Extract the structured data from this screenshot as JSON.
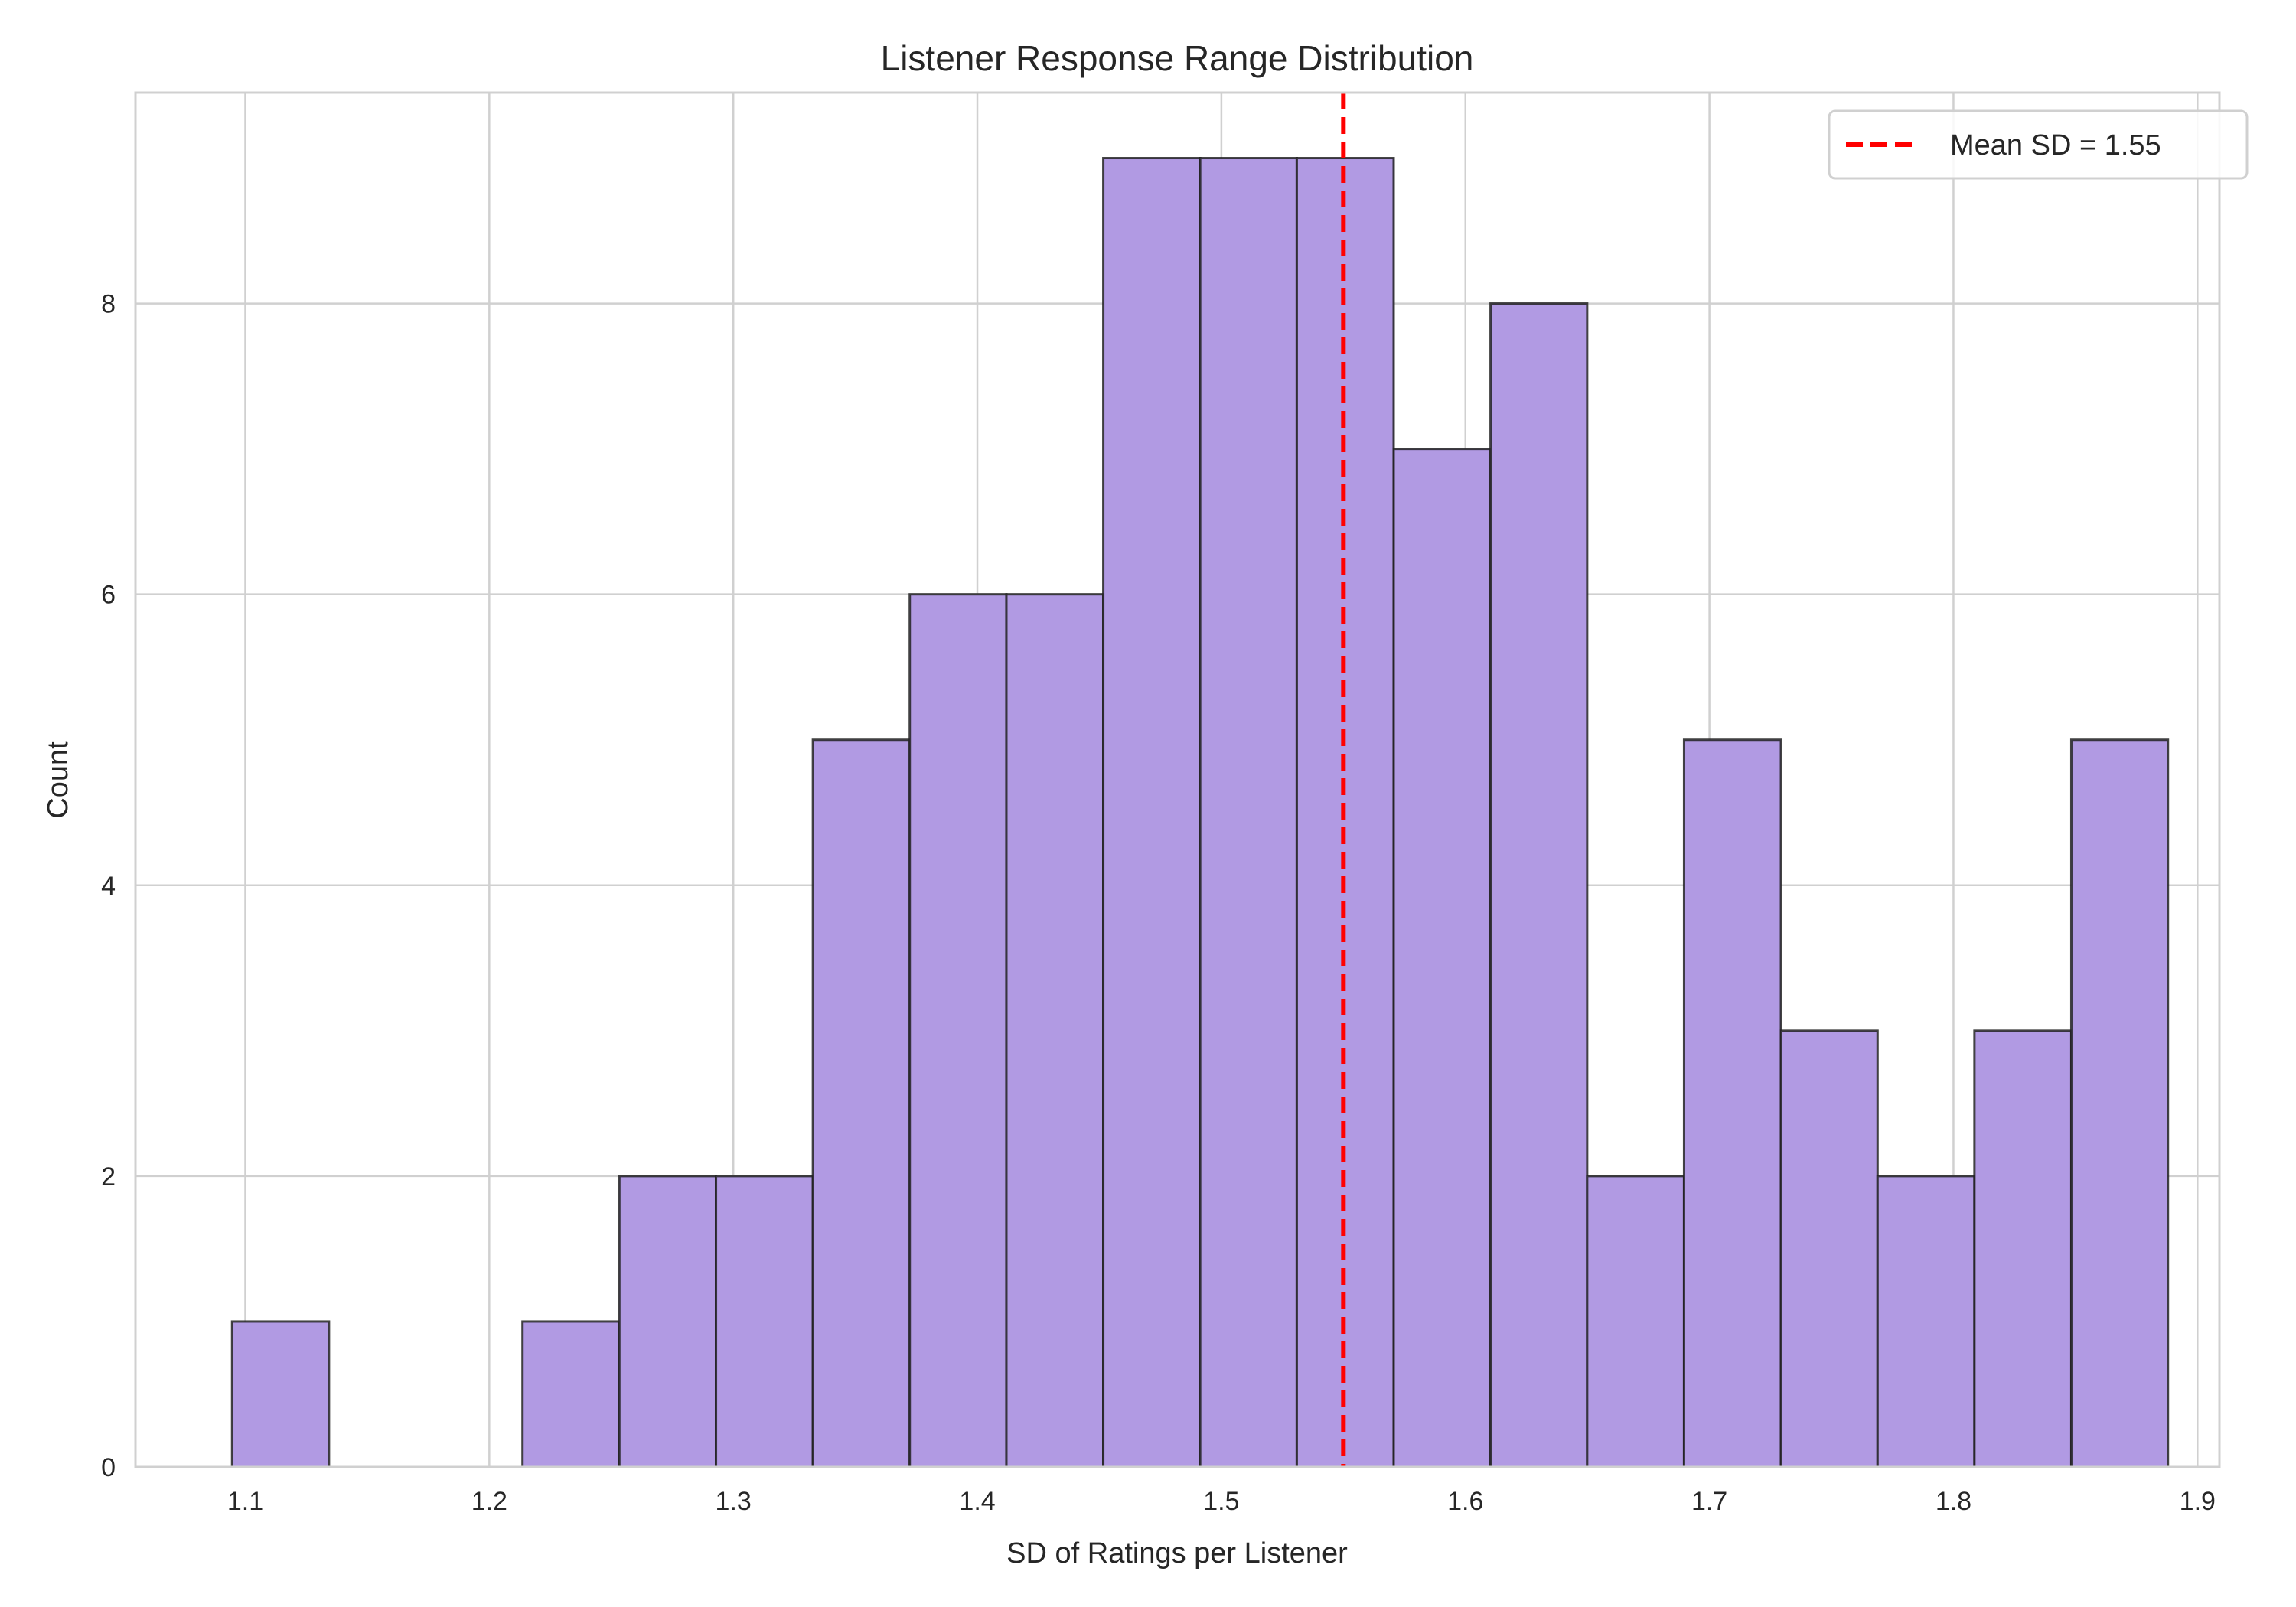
{
  "chart_data": {
    "type": "bar",
    "subtype": "histogram",
    "title": "Listener Response Range Distribution",
    "xlabel": "SD of Ratings per Listener",
    "ylabel": "Count",
    "xlim": [
      1.055,
      1.909
    ],
    "ylim": [
      0,
      9.45
    ],
    "xticks": [
      "1.1",
      "1.2",
      "1.3",
      "1.4",
      "1.5",
      "1.6",
      "1.7",
      "1.8",
      "1.9"
    ],
    "yticks": [
      "0",
      "2",
      "4",
      "6",
      "8"
    ],
    "grid": true,
    "bin_edges": [
      1.0946,
      1.1343,
      1.1739,
      1.2136,
      1.2533,
      1.2929,
      1.3326,
      1.3723,
      1.4119,
      1.4516,
      1.4913,
      1.5309,
      1.5706,
      1.6103,
      1.6499,
      1.6896,
      1.7293,
      1.7689,
      1.8086,
      1.8483,
      1.8879
    ],
    "counts": [
      1,
      0,
      0,
      1,
      2,
      2,
      5,
      6,
      6,
      9,
      9,
      9,
      7,
      8,
      2,
      5,
      3,
      2,
      3,
      5
    ],
    "bar_color": "#b19ae3",
    "edge_color": "#222222",
    "mean_line": {
      "value": 1.55,
      "label": "Mean SD = 1.55",
      "color": "#ff0000",
      "style": "dashed"
    },
    "legend_position": "top-right"
  }
}
